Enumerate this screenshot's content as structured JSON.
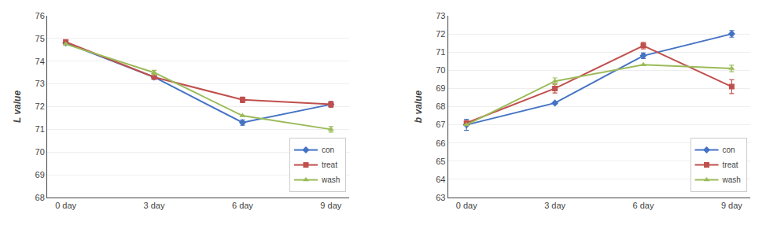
{
  "chart_data": [
    {
      "type": "line",
      "categories": [
        "0 day",
        "3 day",
        "6 day",
        "9 day"
      ],
      "ylabel": "L value",
      "ylim": [
        68,
        76
      ],
      "yticks": [
        68,
        69,
        70,
        71,
        72,
        73,
        74,
        75,
        76
      ],
      "grid": true,
      "legend": "lower right",
      "series": [
        {
          "name": "con",
          "color": "#4472C4",
          "marker": "diamond",
          "values": [
            74.8,
            73.3,
            71.3,
            72.1
          ],
          "errors": [
            0.0,
            0.0,
            0.12,
            0.12
          ]
        },
        {
          "name": "treat",
          "color": "#C0504D",
          "marker": "square",
          "values": [
            74.85,
            73.3,
            72.3,
            72.1
          ],
          "errors": [
            0.08,
            0.08,
            0.12,
            0.12
          ]
        },
        {
          "name": "wash",
          "color": "#9BBB59",
          "marker": "triangle-up",
          "values": [
            74.75,
            73.5,
            71.6,
            71.0
          ],
          "errors": [
            0.0,
            0.1,
            0.0,
            0.12
          ]
        }
      ]
    },
    {
      "type": "line",
      "categories": [
        "0 day",
        "3 day",
        "6 day",
        "9 day"
      ],
      "ylabel": "b value",
      "ylim": [
        63,
        73
      ],
      "yticks": [
        63,
        64,
        65,
        66,
        67,
        68,
        69,
        70,
        71,
        72,
        73
      ],
      "grid": true,
      "legend": "lower right",
      "series": [
        {
          "name": "con",
          "color": "#4472C4",
          "marker": "diamond",
          "values": [
            67.0,
            68.2,
            70.8,
            72.0
          ],
          "errors": [
            0.3,
            0.0,
            0.15,
            0.18
          ]
        },
        {
          "name": "treat",
          "color": "#C0504D",
          "marker": "square",
          "values": [
            67.1,
            69.0,
            71.35,
            69.1
          ],
          "errors": [
            0.1,
            0.25,
            0.18,
            0.38
          ]
        },
        {
          "name": "wash",
          "color": "#9BBB59",
          "marker": "triangle-up",
          "values": [
            67.0,
            69.4,
            70.3,
            70.1
          ],
          "errors": [
            0.0,
            0.18,
            0.0,
            0.18
          ]
        }
      ]
    }
  ]
}
